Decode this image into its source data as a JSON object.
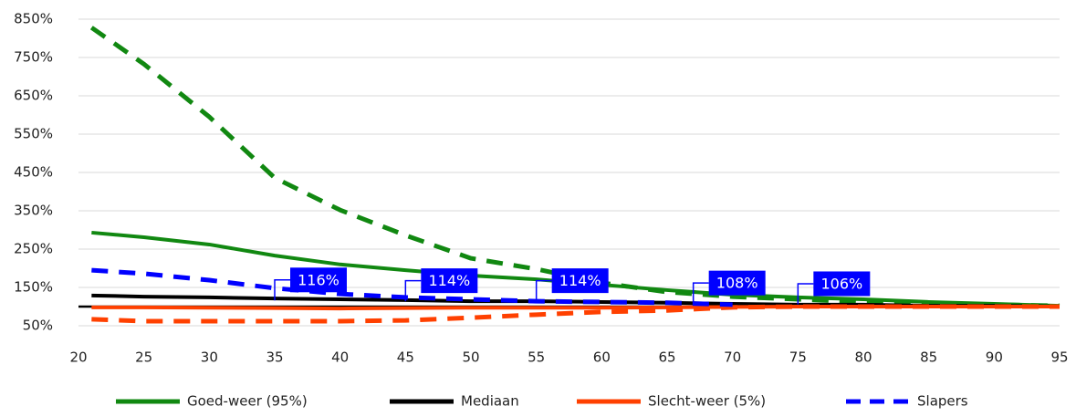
{
  "chart_data": {
    "type": "line",
    "x": [
      21,
      25,
      30,
      35,
      40,
      45,
      50,
      55,
      60,
      65,
      70,
      75,
      80,
      85,
      90,
      95
    ],
    "series": [
      {
        "color": "#118811",
        "dashed": true,
        "values": [
          828,
          733,
          595,
          436,
          352,
          286,
          226,
          198,
          162,
          138,
          126,
          119,
          112,
          107,
          105,
          102
        ]
      },
      {
        "name": "Goed-weer (95%)",
        "color": "#118811",
        "dashed": false,
        "values": [
          293,
          281,
          262,
          233,
          210,
          195,
          181,
          171,
          157,
          143,
          131,
          124,
          119,
          112,
          107,
          102
        ]
      },
      {
        "name": "Mediaan",
        "color": "#000000",
        "dashed": false,
        "values": [
          129,
          126,
          124,
          121,
          119,
          117,
          114,
          114,
          112,
          110,
          107,
          105,
          105,
          102,
          102,
          100
        ]
      },
      {
        "color": "#ff4000",
        "dashed": true,
        "values": [
          67,
          62,
          62,
          62,
          62,
          64,
          71,
          79,
          86,
          90,
          98,
          100,
          100,
          100,
          100,
          100
        ]
      },
      {
        "name": "Slecht-weer (5%)",
        "color": "#ff4000",
        "dashed": false,
        "values": [
          98,
          98,
          97,
          96,
          95,
          96,
          97,
          97,
          97,
          98,
          99,
          100,
          100,
          100,
          100,
          100
        ]
      },
      {
        "name": "Slapers",
        "color": "#0000ff",
        "dashed": true,
        "values": [
          195,
          186,
          169,
          148,
          133,
          124,
          119,
          114,
          112,
          110,
          105,
          null,
          null,
          null,
          null,
          null
        ]
      }
    ],
    "xlim": [
      20,
      95
    ],
    "xticks": [
      20,
      25,
      30,
      35,
      40,
      45,
      50,
      55,
      60,
      65,
      70,
      75,
      80,
      85,
      90,
      95
    ],
    "ylim": [
      50,
      850
    ],
    "yticks": [
      {
        "value": 50,
        "label": "50%"
      },
      {
        "value": 150,
        "label": "150%"
      },
      {
        "value": 250,
        "label": "250%"
      },
      {
        "value": 350,
        "label": "350%"
      },
      {
        "value": 450,
        "label": "450%"
      },
      {
        "value": 550,
        "label": "550%"
      },
      {
        "value": 650,
        "label": "650%"
      },
      {
        "value": 750,
        "label": "750%"
      },
      {
        "value": 850,
        "label": "850%"
      }
    ],
    "x_axis_at": 100,
    "grid": true,
    "legend": "bottom",
    "annotations": [
      {
        "x": 35,
        "value": 116,
        "label": "116%"
      },
      {
        "x": 45,
        "value": 114,
        "label": "114%"
      },
      {
        "x": 55,
        "value": 114,
        "label": "114%"
      },
      {
        "x": 67,
        "value": 108,
        "label": "108%"
      },
      {
        "x": 75,
        "value": 106,
        "label": "106%"
      }
    ]
  }
}
